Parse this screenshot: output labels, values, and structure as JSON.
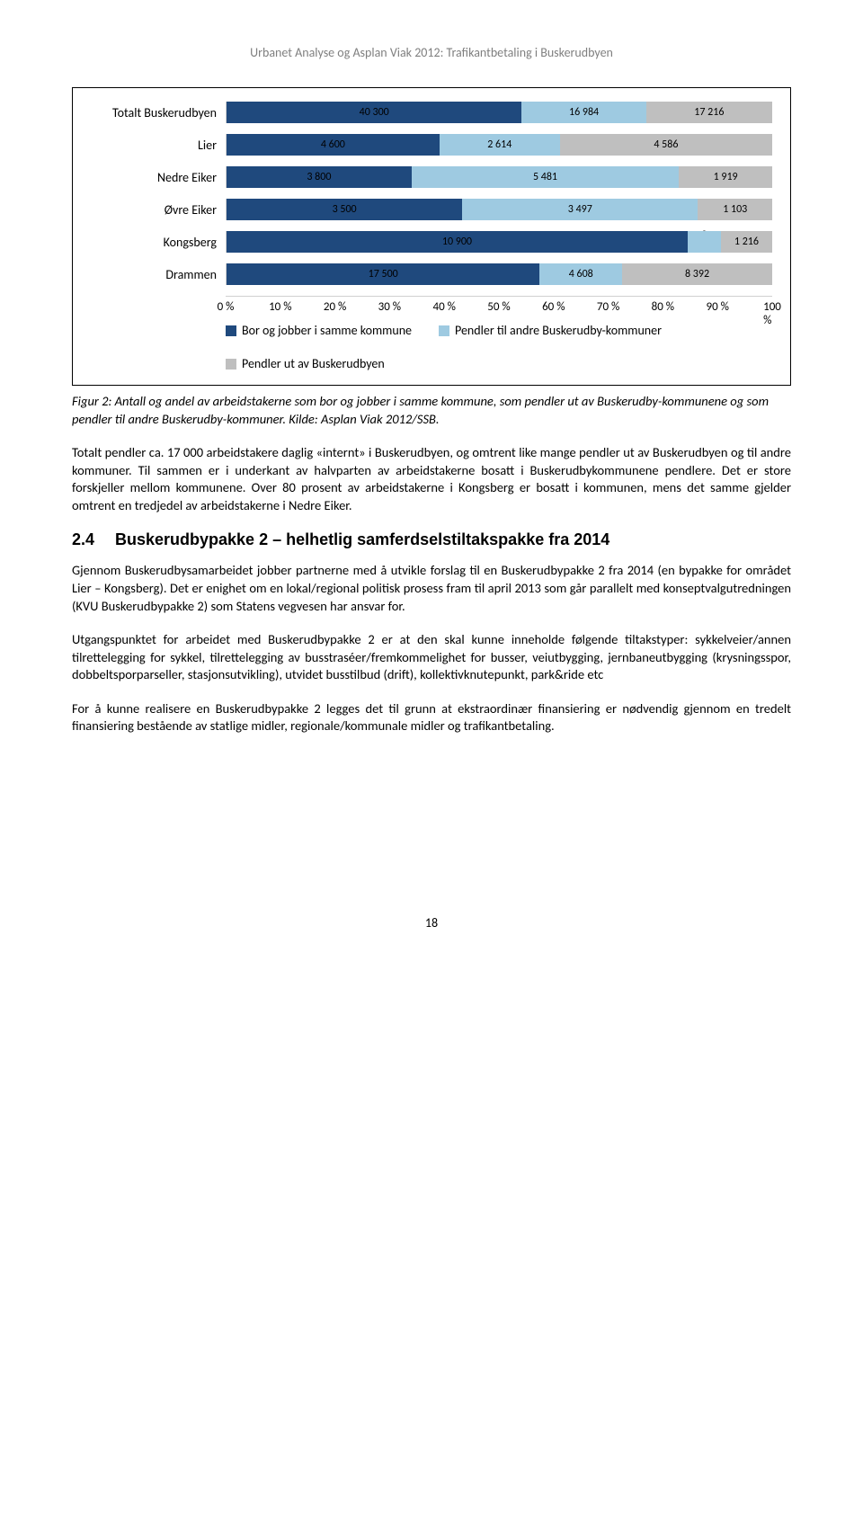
{
  "header": "Urbanet Analyse og Asplan Viak 2012: Trafikantbetaling i Buskerudbyen",
  "chart": {
    "type": "stacked-bar-horizontal",
    "categories": [
      "Totalt Buskerudbyen",
      "Lier",
      "Nedre Eiker",
      "Øvre Eiker",
      "Kongsberg",
      "Drammen"
    ],
    "series": [
      {
        "name": "Bor og jobber i samme kommune",
        "color": "#1f497d"
      },
      {
        "name": "Pendler til andre Buskerudby-kommuner",
        "color": "#9ecae1"
      },
      {
        "name": "Pendler ut av Buskerudbyen",
        "color": "#bfbfbf"
      }
    ],
    "rows": [
      {
        "values": [
          40300,
          16984,
          17216
        ],
        "pct": [
          54.1,
          22.8,
          23.1
        ]
      },
      {
        "values": [
          4600,
          2614,
          4586
        ],
        "pct": [
          39.0,
          22.1,
          38.9
        ]
      },
      {
        "values": [
          3800,
          5481,
          1919
        ],
        "pct": [
          33.9,
          49.0,
          17.1
        ]
      },
      {
        "values": [
          3500,
          3497,
          1103
        ],
        "pct": [
          43.2,
          43.2,
          13.6
        ]
      },
      {
        "values": [
          10900,
          784,
          1216
        ],
        "pct": [
          84.5,
          6.1,
          9.4
        ]
      },
      {
        "values": [
          17500,
          4608,
          8392
        ],
        "pct": [
          57.4,
          15.1,
          27.5
        ]
      }
    ],
    "xlim": [
      0,
      100
    ],
    "xtick_step": 10,
    "xtick_labels": [
      "0 %",
      "10 %",
      "20 %",
      "30 %",
      "40 %",
      "50 %",
      "60 %",
      "70 %",
      "80 %",
      "90 %",
      "100 %"
    ],
    "label_format": "spaced_thousands"
  },
  "caption": "Figur 2: Antall og andel av arbeidstakerne som bor og jobber i samme kommune, som pendler ut av Buskerudby-kommunene og som pendler til andre Buskerudby-kommuner. Kilde: Asplan Viak 2012/SSB.",
  "para1": "Totalt pendler ca. 17 000 arbeidstakere daglig «internt» i Buskerudbyen, og omtrent like mange pendler ut av Buskerudbyen og til andre kommuner. Til sammen er i underkant av halvparten av arbeidstakerne bosatt i Buskerudbykommunene pendlere.  Det er store forskjeller mellom kommunene. Over 80 prosent av arbeidstakerne i Kongsberg er bosatt i kommunen, mens det samme gjelder omtrent en tredjedel av arbeidstakerne i Nedre Eiker.",
  "heading": {
    "num": "2.4",
    "text": "Buskerudbypakke 2 – helhetlig samferdselstiltakspakke fra 2014"
  },
  "para2": "Gjennom Buskerudbysamarbeidet jobber partnerne med å utvikle forslag til en Buskerudbypakke 2 fra 2014 (en bypakke for området Lier – Kongsberg). Det er enighet om en lokal/regional politisk prosess fram til april 2013 som går parallelt med konseptvalgutredningen (KVU Buskerudbypakke 2) som Statens vegvesen har ansvar for.",
  "para3": "Utgangspunktet for arbeidet med Buskerudbypakke 2 er at den skal kunne inneholde følgende tiltakstyper: sykkelveier/annen tilrettelegging for sykkel, tilrettelegging av busstraséer/fremkommelighet for busser, veiutbygging, jernbaneutbygging (krysningsspor, dobbeltsporparseller, stasjonsutvikling), utvidet busstilbud (drift), kollektivknutepunkt, park&ride etc",
  "para4": "For å kunne realisere en Buskerudbypakke 2 legges det til grunn at ekstraordinær finansiering er nødvendig gjennom en tredelt finansiering bestående av statlige midler, regionale/kommunale midler og trafikantbetaling.",
  "page_number": "18"
}
